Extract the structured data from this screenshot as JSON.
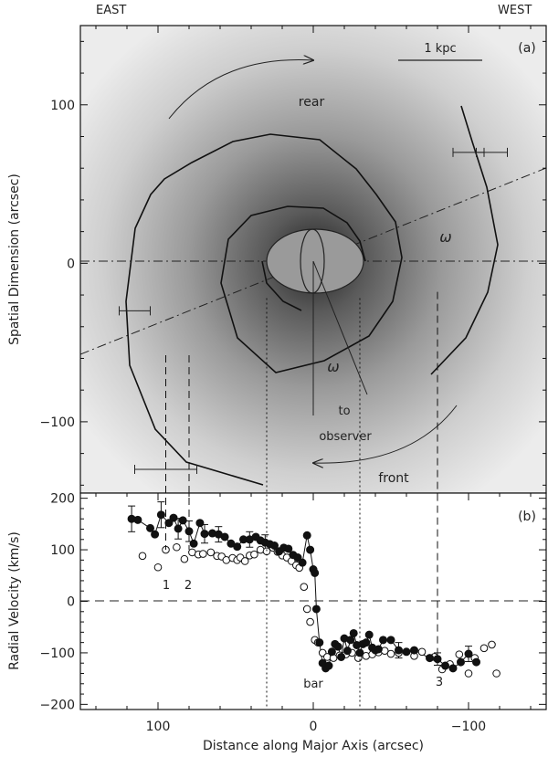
{
  "top_labels": {
    "east": "EAST",
    "west": "WEST"
  },
  "chart_data": [
    {
      "panel": "(a)",
      "type": "diagram",
      "ylabel": "Spatial Dimension (arcsec)",
      "xlim": [
        150,
        -150
      ],
      "ylim": [
        -145,
        150
      ],
      "y_ticks": [
        100,
        0,
        -100
      ],
      "scale_bar": "1 kpc",
      "annotations": [
        "rear",
        "front",
        "to",
        "observer",
        "ω",
        "ω"
      ],
      "spiral_arm_outer": [
        [
          -90,
          100
        ],
        [
          -100,
          50
        ],
        [
          -110,
          10
        ],
        [
          -100,
          -40
        ],
        [
          -70,
          -100
        ],
        [
          -20,
          -125
        ],
        [
          30,
          -130
        ],
        [
          80,
          -120
        ],
        [
          110,
          -80
        ],
        [
          120,
          -20
        ],
        [
          110,
          40
        ],
        [
          90,
          80
        ],
        [
          40,
          100
        ],
        [
          -20,
          100
        ],
        [
          -70,
          75
        ],
        [
          -100,
          40
        ],
        [
          -95,
          20
        ]
      ],
      "spiral_arm_inner": [
        [
          54,
          0
        ],
        [
          40,
          25
        ],
        [
          0,
          35
        ],
        [
          -40,
          20
        ],
        [
          -55,
          -10
        ],
        [
          -35,
          -50
        ],
        [
          0,
          -65
        ],
        [
          25,
          -60
        ],
        [
          40,
          -40
        ],
        [
          35,
          -10
        ],
        [
          20,
          0
        ]
      ],
      "error_bars_x": [
        [
          -100,
          70,
          10
        ],
        [
          -115,
          70,
          10
        ],
        [
          115,
          -30,
          10
        ],
        [
          95,
          -130,
          20
        ]
      ],
      "reference_lines": {
        "dash_dot_horizontal": 0,
        "dash_dot_inclined": [
          [
            150,
            -60
          ],
          [
            -150,
            60
          ]
        ],
        "dashed_verticals": [
          95,
          80,
          -80
        ],
        "dotted_verticals": [
          30,
          -30
        ]
      }
    },
    {
      "panel": "(b)",
      "type": "scatter",
      "xlabel": "Distance along Major Axis (arcsec)",
      "ylabel": "Radial Velocity (km/s)",
      "xlim": [
        150,
        -150
      ],
      "ylim": [
        -210,
        210
      ],
      "x_ticks": [
        100,
        0,
        -100
      ],
      "y_ticks": [
        200,
        100,
        0,
        -100,
        -200
      ],
      "point_labels": [
        "1",
        "2",
        "bar",
        "3"
      ],
      "series": [
        {
          "marker": "filled",
          "points": [
            [
              117,
              160
            ],
            [
              113,
              158
            ],
            [
              105,
              142
            ],
            [
              102,
              130
            ],
            [
              98,
              168
            ],
            [
              93,
              152
            ],
            [
              90,
              162
            ],
            [
              87,
              141
            ],
            [
              84,
              157
            ],
            [
              80,
              136
            ],
            [
              77,
              112
            ],
            [
              73,
              152
            ],
            [
              70,
              131
            ],
            [
              65,
              132
            ],
            [
              61,
              130
            ],
            [
              57,
              125
            ],
            [
              53,
              112
            ],
            [
              49,
              106
            ],
            [
              45,
              120
            ],
            [
              41,
              120
            ],
            [
              37,
              125
            ],
            [
              34,
              118
            ],
            [
              31,
              114
            ],
            [
              28,
              111
            ],
            [
              25,
              108
            ],
            [
              22,
              97
            ],
            [
              19,
              104
            ],
            [
              16,
              102
            ],
            [
              13,
              90
            ],
            [
              10,
              85
            ],
            [
              7,
              75
            ],
            [
              4,
              128
            ],
            [
              2,
              100
            ],
            [
              0,
              62
            ],
            [
              -1,
              55
            ],
            [
              -2,
              -15
            ],
            [
              -4,
              -80
            ],
            [
              -6,
              -120
            ],
            [
              -8,
              -130
            ],
            [
              -10,
              -125
            ],
            [
              -12,
              -98
            ],
            [
              -14,
              -83
            ],
            [
              -16,
              -88
            ],
            [
              -18,
              -108
            ],
            [
              -20,
              -72
            ],
            [
              -22,
              -96
            ],
            [
              -24,
              -75
            ],
            [
              -26,
              -62
            ],
            [
              -28,
              -85
            ],
            [
              -30,
              -100
            ],
            [
              -32,
              -83
            ],
            [
              -34,
              -80
            ],
            [
              -36,
              -65
            ],
            [
              -38,
              -90
            ],
            [
              -40,
              -95
            ],
            [
              -42,
              -93
            ],
            [
              -45,
              -75
            ],
            [
              -50,
              -75
            ],
            [
              -55,
              -95
            ],
            [
              -60,
              -98
            ],
            [
              -65,
              -95
            ],
            [
              -75,
              -110
            ],
            [
              -80,
              -112
            ],
            [
              -85,
              -125
            ],
            [
              -90,
              -130
            ],
            [
              -95,
              -118
            ],
            [
              -100,
              -102
            ],
            [
              -105,
              -118
            ]
          ],
          "error_bars": [
            [
              117,
              160,
              25
            ],
            [
              98,
              168,
              25
            ],
            [
              87,
              141,
              20
            ],
            [
              80,
              136,
              20
            ],
            [
              70,
              131,
              18
            ],
            [
              61,
              130,
              15
            ],
            [
              41,
              120,
              15
            ],
            [
              31,
              114,
              15
            ],
            [
              -55,
              -95,
              15
            ],
            [
              -80,
              -112,
              12
            ],
            [
              -100,
              -102,
              15
            ]
          ]
        },
        {
          "marker": "open",
          "points": [
            [
              110,
              88
            ],
            [
              100,
              66
            ],
            [
              95,
              100
            ],
            [
              88,
              105
            ],
            [
              83,
              82
            ],
            [
              78,
              95
            ],
            [
              74,
              91
            ],
            [
              71,
              92
            ],
            [
              66,
              95
            ],
            [
              62,
              88
            ],
            [
              59,
              87
            ],
            [
              56,
              80
            ],
            [
              52,
              84
            ],
            [
              49,
              80
            ],
            [
              47,
              85
            ],
            [
              44,
              78
            ],
            [
              41,
              89
            ],
            [
              38,
              91
            ],
            [
              34,
              100
            ],
            [
              30,
              97
            ],
            [
              26,
              104
            ],
            [
              23,
              96
            ],
            [
              20,
              89
            ],
            [
              17,
              85
            ],
            [
              14,
              78
            ],
            [
              11,
              70
            ],
            [
              9,
              65
            ],
            [
              6,
              28
            ],
            [
              4,
              -15
            ],
            [
              2,
              -40
            ],
            [
              -1,
              -75
            ],
            [
              -3,
              -80
            ],
            [
              -6,
              -100
            ],
            [
              -9,
              -108
            ],
            [
              -13,
              -110
            ],
            [
              -17,
              -105
            ],
            [
              -21,
              -103
            ],
            [
              -25,
              -100
            ],
            [
              -29,
              -110
            ],
            [
              -34,
              -106
            ],
            [
              -38,
              -103
            ],
            [
              -42,
              -99
            ],
            [
              -46,
              -96
            ],
            [
              -50,
              -102
            ],
            [
              -55,
              -100
            ],
            [
              -60,
              -98
            ],
            [
              -65,
              -106
            ],
            [
              -70,
              -98
            ],
            [
              -78,
              -108
            ],
            [
              -83,
              -132
            ],
            [
              -88,
              -122
            ],
            [
              -94,
              -103
            ],
            [
              -100,
              -140
            ],
            [
              -104,
              -110
            ],
            [
              -110,
              -91
            ],
            [
              -115,
              -84
            ],
            [
              -118,
              -140
            ]
          ]
        }
      ]
    }
  ]
}
